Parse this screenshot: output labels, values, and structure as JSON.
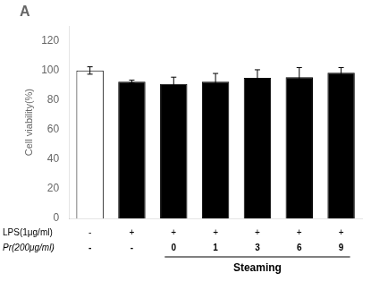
{
  "chart_data": {
    "type": "bar",
    "title": "A",
    "ylabel": "Cell viability(%)",
    "categories": [
      null,
      null,
      null,
      null,
      null,
      null,
      null
    ],
    "values": [
      100,
      92.5,
      91.0,
      92.5,
      95.0,
      95.5,
      98.5
    ],
    "errors": [
      2.5,
      1.0,
      4.5,
      5.5,
      5.5,
      6.5,
      3.5
    ],
    "colors": [
      "#ffffff",
      "#000000",
      "#000000",
      "#000000",
      "#000000",
      "#000000",
      "#000000"
    ],
    "edge_color": "#000000",
    "error_color": "#000000",
    "ylim": [
      0,
      130
    ],
    "yticks": [
      0,
      20,
      40,
      60,
      80,
      100,
      120
    ],
    "grid": false,
    "tick_labels": "y",
    "annotations": {
      "rows": [
        {
          "label": "LPS(1μg/ml)",
          "texts": [
            "-",
            "+",
            "+",
            "+",
            "+",
            "+",
            "+"
          ]
        },
        {
          "label": "Pr(200μg/ml)",
          "texts": [
            "-",
            "-",
            "0",
            "1",
            "3",
            "6",
            "9"
          ]
        }
      ],
      "groups": [
        {
          "text": "Steaming",
          "from": 2,
          "to": 6
        }
      ]
    }
  }
}
